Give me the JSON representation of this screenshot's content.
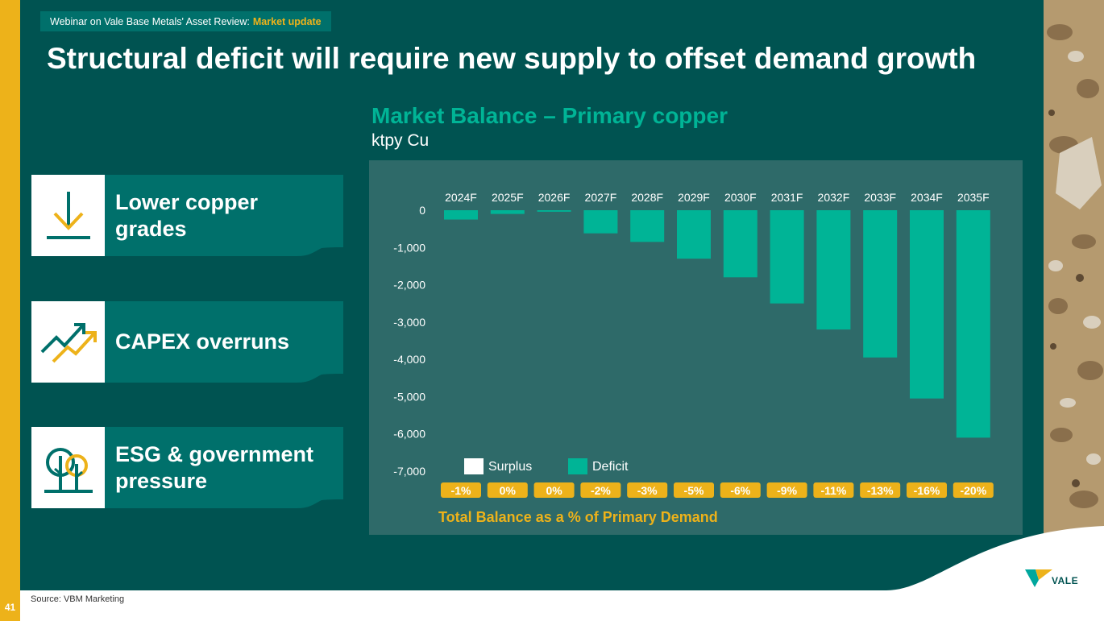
{
  "header": {
    "webinar_label": "Webinar on Vale Base Metals' Asset Review:",
    "webinar_highlight": "Market update",
    "title": "Structural deficit will require new supply to offset demand growth"
  },
  "cards": [
    {
      "label": "Lower copper grades",
      "icon": "download-arrow-icon"
    },
    {
      "label": "CAPEX overruns",
      "icon": "trending-up-icon"
    },
    {
      "label": "ESG & government pressure",
      "icon": "trees-icon"
    }
  ],
  "footer": {
    "source": "Source: VBM Marketing",
    "page_number": "41",
    "brand": "VALE"
  },
  "colors": {
    "background": "#005351",
    "accent_yellow": "#edb21a",
    "deficit": "#00b496",
    "surplus": "#ffffff",
    "panel": "#2e6a69"
  },
  "chart_data": {
    "type": "bar",
    "title": "Market Balance – Primary copper",
    "subtitle": "ktpy Cu",
    "categories": [
      "2024F",
      "2025F",
      "2026F",
      "2027F",
      "2028F",
      "2029F",
      "2030F",
      "2031F",
      "2032F",
      "2033F",
      "2034F",
      "2035F"
    ],
    "series": [
      {
        "name": "Deficit",
        "values": [
          -250,
          -100,
          -40,
          -620,
          -850,
          -1300,
          -1800,
          -2500,
          -3200,
          -3950,
          -5050,
          -6100
        ]
      }
    ],
    "legend": [
      "Surplus",
      "Deficit"
    ],
    "y_ticks": [
      "0",
      "-1,000",
      "-2,000",
      "-3,000",
      "-4,000",
      "-5,000",
      "-6,000",
      "-7,000"
    ],
    "ylim": [
      -7000,
      0
    ],
    "legend_position": "bottom-left",
    "grid": false,
    "balance_pct_label": "Total Balance as a % of Primary Demand",
    "balance_pct": [
      "-1%",
      "0%",
      "0%",
      "-2%",
      "-3%",
      "-5%",
      "-6%",
      "-9%",
      "-11%",
      "-13%",
      "-16%",
      "-20%"
    ]
  }
}
